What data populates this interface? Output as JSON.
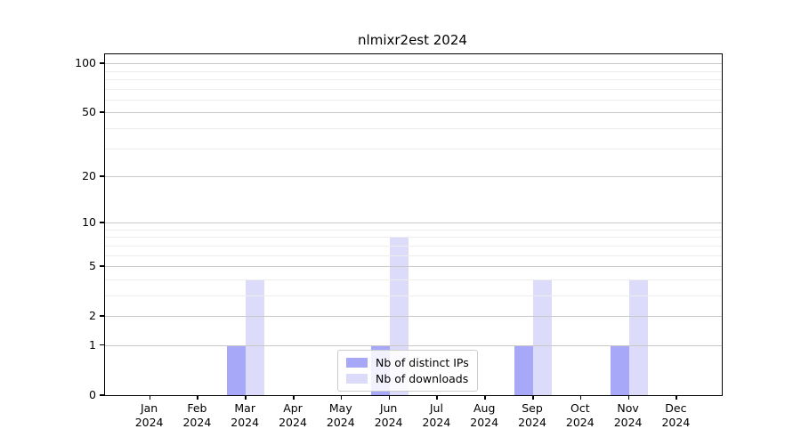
{
  "window": {
    "background": "#ffffff"
  },
  "chart_data": {
    "type": "bar",
    "title": "nlmixr2est 2024",
    "categories": [
      "Jan 2024",
      "Feb 2024",
      "Mar 2024",
      "Apr 2024",
      "May 2024",
      "Jun 2024",
      "Jul 2024",
      "Aug 2024",
      "Sep 2024",
      "Oct 2024",
      "Nov 2024",
      "Dec 2024"
    ],
    "series": [
      {
        "name": "Nb of distinct IPs",
        "color": "#a8a8f8",
        "values": [
          0,
          0,
          1,
          0,
          0,
          1,
          0,
          0,
          1,
          0,
          1,
          0
        ]
      },
      {
        "name": "Nb of downloads",
        "color": "#dcdcfa",
        "values": [
          0,
          0,
          4,
          0,
          0,
          8,
          0,
          0,
          4,
          0,
          4,
          0
        ]
      }
    ],
    "xlabel": "",
    "ylabel": "",
    "yscale": "log1p",
    "ylim": [
      0,
      113.5
    ],
    "y_ticks": [
      0,
      1,
      2,
      5,
      10,
      20,
      50,
      100
    ],
    "y_tick_labels": [
      "0",
      "1",
      "2",
      "5",
      "10",
      "20",
      "50",
      "100"
    ],
    "grid_major_values": [
      1,
      2,
      5,
      10,
      20,
      50,
      100
    ],
    "grid_minor_values": [
      3,
      4,
      6,
      7,
      8,
      9,
      30,
      40,
      60,
      70,
      80,
      90
    ],
    "grid": true,
    "legend_position": "lower center"
  },
  "styles": {
    "grid_major_color": "#c9c9c9",
    "grid_minor_color": "#ededed",
    "spine_color": "#000000",
    "ips_bar_color": "#a8a8f8",
    "downloads_bar_color": "#dcdcfa"
  }
}
